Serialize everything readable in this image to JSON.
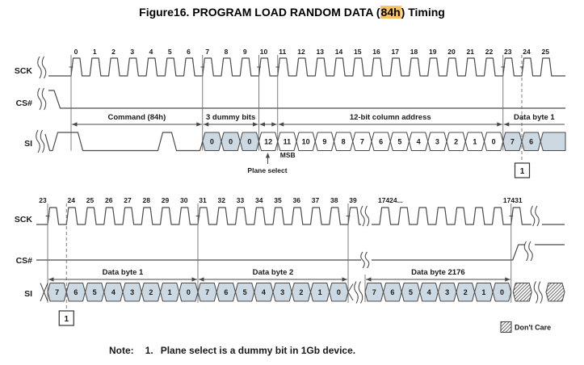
{
  "title": {
    "prefix": "Figure16. PROGRAM LOAD RANDOM DATA (",
    "highlight": "84h",
    "suffix": ") Timing"
  },
  "colors": {
    "line": "#4a4a4a",
    "guide": "#6e6e6e",
    "text": "#1a1a1a",
    "cell_fill": "#ccd9e3",
    "cell_white": "#ffffff",
    "highlight_bg": "#f6c263"
  },
  "top_diagram": {
    "signals": {
      "clock": "SCK",
      "chip_select": "CS#",
      "serial_in": "SI"
    },
    "clock_numbers": [
      "0",
      "1",
      "2",
      "3",
      "4",
      "5",
      "6",
      "7",
      "8",
      "9",
      "10",
      "11",
      "12",
      "13",
      "14",
      "15",
      "16",
      "17",
      "18",
      "19",
      "20",
      "21",
      "22",
      "23",
      "24",
      "25"
    ],
    "command_bits": [
      1,
      0,
      0,
      0,
      0,
      1,
      0,
      0
    ],
    "spans": [
      {
        "label": "Command (84h)",
        "from": 0,
        "to": 7
      },
      {
        "label": "3 dummy bits",
        "from": 7,
        "to": 10
      },
      {
        "label": "",
        "from": 10,
        "to": 11
      },
      {
        "label": "12-bit column address",
        "from": 11,
        "to": 23
      },
      {
        "label": "Data byte 1",
        "from": 23,
        "to": -1
      }
    ],
    "si_cells": [
      {
        "value": "0",
        "shaded": true
      },
      {
        "value": "0",
        "shaded": true
      },
      {
        "value": "0",
        "shaded": true
      },
      {
        "value": "12",
        "shaded": false
      },
      {
        "value": "11",
        "shaded": false
      },
      {
        "value": "10",
        "shaded": false
      },
      {
        "value": "9",
        "shaded": false
      },
      {
        "value": "8",
        "shaded": false
      },
      {
        "value": "7",
        "shaded": false
      },
      {
        "value": "6",
        "shaded": false
      },
      {
        "value": "5",
        "shaded": false
      },
      {
        "value": "4",
        "shaded": false
      },
      {
        "value": "3",
        "shaded": false
      },
      {
        "value": "2",
        "shaded": false
      },
      {
        "value": "1",
        "shaded": false
      },
      {
        "value": "0",
        "shaded": false
      },
      {
        "value": "7",
        "shaded": true
      },
      {
        "value": "6",
        "shaded": true
      }
    ],
    "msb_label": "MSB",
    "plane_select_label": "Plane select",
    "note_marker": "1"
  },
  "bottom_diagram": {
    "signals": {
      "clock": "SCK",
      "chip_select": "CS#",
      "serial_in": "SI"
    },
    "clock_numbers": [
      "23",
      "24",
      "25",
      "26",
      "27",
      "28",
      "29",
      "30",
      "31",
      "32",
      "33",
      "34",
      "35",
      "36",
      "37",
      "38",
      "39"
    ],
    "clock_numbers_continued": [
      "17424...",
      "17431"
    ],
    "spans": [
      {
        "label": "Data byte 1"
      },
      {
        "label": "Data byte 2"
      },
      {
        "label": "Data byte 2176"
      }
    ],
    "byte_bit_values": [
      "7",
      "6",
      "5",
      "4",
      "3",
      "2",
      "1",
      "0"
    ],
    "note_marker": "1"
  },
  "legend": {
    "dont_care": "Don't Care"
  },
  "note": {
    "label": "Note:",
    "number": "1.",
    "text": "Plane select is a dummy bit in 1Gb device."
  }
}
